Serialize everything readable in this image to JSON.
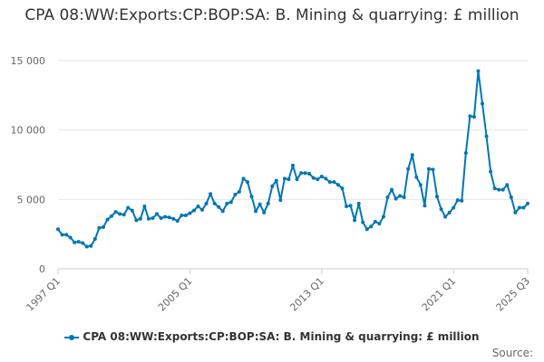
{
  "chart_data": {
    "type": "line",
    "title": "CPA 08:WW:Exports:CP:BOP:SA: B. Mining & quarrying: £ million",
    "xlabel": "",
    "ylabel": "",
    "ylim": [
      0,
      15000
    ],
    "y_ticks": [
      0,
      5000,
      10000,
      15000
    ],
    "y_tick_labels": [
      "0",
      "5 000",
      "10 000",
      "15 000"
    ],
    "x_tick_labels": [
      "1997 Q1",
      "2005 Q1",
      "2013 Q1",
      "2021 Q1",
      "2025 Q3"
    ],
    "x_tick_positions": [
      0,
      32,
      64,
      96,
      114
    ],
    "grid": true,
    "legend": "bottom",
    "series_color": "#0076b6",
    "series": [
      {
        "name": "CPA 08:WW:Exports:CP:BOP:SA: B. Mining & quarrying: £ million",
        "values": [
          2850,
          2450,
          2450,
          2250,
          1900,
          1950,
          1850,
          1600,
          1650,
          2150,
          2950,
          3000,
          3550,
          3800,
          4100,
          3950,
          3900,
          4400,
          4200,
          3500,
          3600,
          4500,
          3600,
          3650,
          3950,
          3650,
          3750,
          3700,
          3600,
          3450,
          3850,
          3850,
          4000,
          4200,
          4500,
          4250,
          4700,
          5400,
          4700,
          4450,
          4150,
          4700,
          4800,
          5350,
          5550,
          6500,
          6250,
          5200,
          4150,
          4650,
          4050,
          4700,
          5950,
          6350,
          4950,
          6500,
          6450,
          7450,
          6450,
          6900,
          6900,
          6850,
          6550,
          6450,
          6650,
          6500,
          6250,
          6250,
          6050,
          5800,
          4500,
          4550,
          3500,
          4700,
          3350,
          2850,
          3050,
          3400,
          3250,
          3750,
          5150,
          5700,
          5050,
          5250,
          5150,
          7200,
          8200,
          6600,
          6050,
          4550,
          7200,
          7150,
          5200,
          4300,
          3750,
          4050,
          4400,
          4950,
          4900,
          8350,
          11000,
          10950,
          14250,
          11900,
          9550,
          7000,
          5800,
          5700,
          5700,
          6050,
          5150,
          4050,
          4400,
          4400,
          4700
        ]
      }
    ]
  },
  "source_label": "Source:"
}
